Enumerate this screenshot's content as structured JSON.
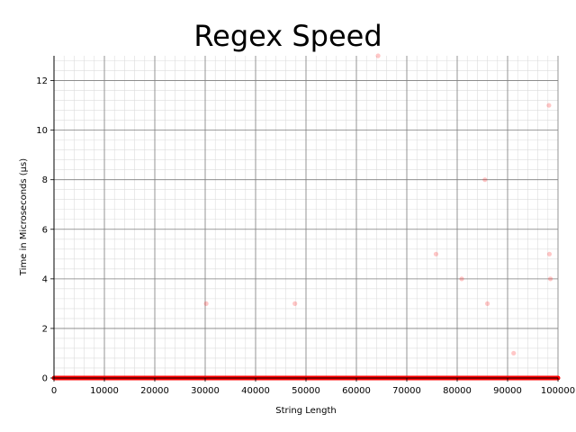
{
  "chart_data": {
    "type": "scatter",
    "title": "Regex Speed",
    "xlabel": "String Length",
    "ylabel": "Time in Microseconds (µs)",
    "xlim": [
      0,
      100000
    ],
    "ylim": [
      0,
      13
    ],
    "x_ticks": [
      0,
      10000,
      20000,
      30000,
      40000,
      50000,
      60000,
      70000,
      80000,
      90000,
      100000
    ],
    "x_tick_labels": [
      "0",
      "10000",
      "20000",
      "30000",
      "40000",
      "50000",
      "60000",
      "70000",
      "80000",
      "90000",
      "100000"
    ],
    "y_ticks": [
      0,
      2,
      4,
      6,
      8,
      10,
      12
    ],
    "y_tick_labels": [
      "0",
      "2",
      "4",
      "6",
      "8",
      "10",
      "12"
    ],
    "grid": true,
    "minor_grid": true,
    "legend": "none",
    "colors": {
      "points": "#ff0000",
      "major_grid": "#808080",
      "minor_grid": "#dcdcdc"
    },
    "series": [
      {
        "baseline_range": [
          0,
          100000
        ],
        "baseline_value": 0,
        "points": [
          {
            "x": 30200,
            "y": 3
          },
          {
            "x": 47800,
            "y": 3
          },
          {
            "x": 64300,
            "y": 13
          },
          {
            "x": 75800,
            "y": 5
          },
          {
            "x": 80900,
            "y": 4
          },
          {
            "x": 85500,
            "y": 8
          },
          {
            "x": 86000,
            "y": 3
          },
          {
            "x": 91200,
            "y": 1
          },
          {
            "x": 98200,
            "y": 11
          },
          {
            "x": 98300,
            "y": 5
          },
          {
            "x": 98500,
            "y": 4
          }
        ]
      }
    ]
  }
}
